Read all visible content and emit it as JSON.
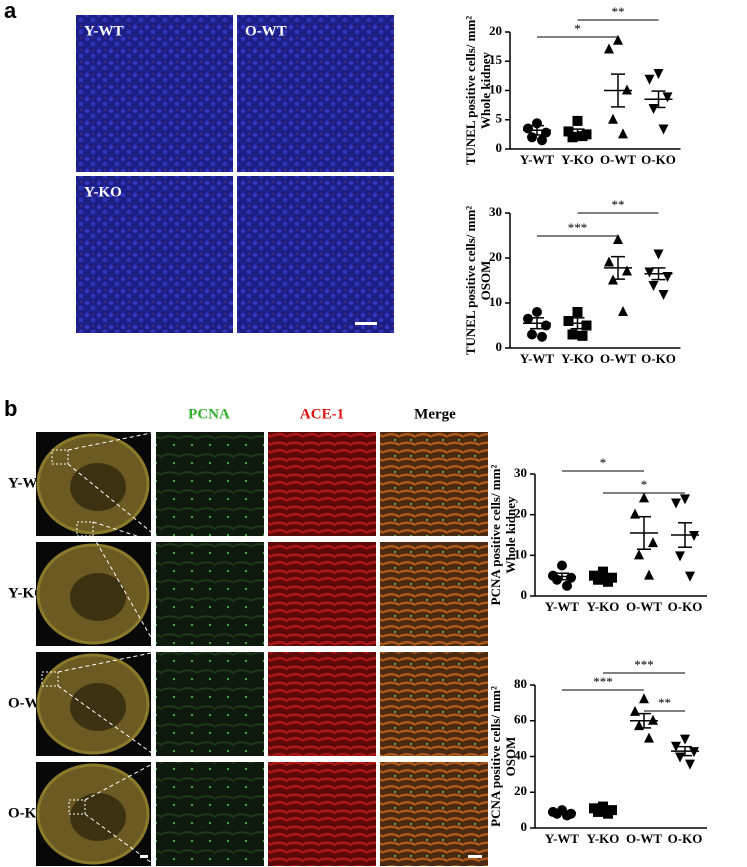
{
  "panel_a": {
    "label": "a",
    "image_labels": [
      "Y-WT",
      "O-WT",
      "Y-KO"
    ]
  },
  "panel_b": {
    "label": "b",
    "columns": [
      "PCNA",
      "ACE-1",
      "Merge"
    ],
    "rows": [
      "Y-WT",
      "Y-KO",
      "O-WT",
      "O-KO"
    ]
  },
  "chart_data": [
    {
      "type": "scatter",
      "y_label": "TUNEL positive cells/ mm²",
      "y_sublabel": "Whole kidney",
      "categories": [
        "Y-WT",
        "Y-KO",
        "O-WT",
        "O-KO"
      ],
      "markers": [
        "circle",
        "square",
        "triangle",
        "triangle-down"
      ],
      "color": "#000000",
      "points": [
        [
          4.4,
          3.5,
          2.8,
          2.0,
          1.5
        ],
        [
          4.8,
          3.0,
          2.5,
          2.0,
          2.2
        ],
        [
          18.5,
          17.0,
          10.0,
          5.0,
          2.5
        ],
        [
          13.0,
          12.0,
          9.0,
          7.0,
          3.5
        ]
      ],
      "means": [
        3.2,
        2.8,
        10.0,
        8.5
      ],
      "sems": [
        0.8,
        0.6,
        2.8,
        1.4
      ],
      "ylim": [
        0,
        20
      ],
      "yticks": [
        0,
        5,
        10,
        15,
        20
      ],
      "significance": [
        {
          "from": "Y-WT",
          "to": "O-WT",
          "label": "*"
        },
        {
          "from": "Y-KO",
          "to": "O-KO",
          "label": "**"
        }
      ]
    },
    {
      "type": "scatter",
      "y_label": "TUNEL positive cells/ mm²",
      "y_sublabel": "OSOM",
      "categories": [
        "Y-WT",
        "Y-KO",
        "O-WT",
        "O-KO"
      ],
      "markers": [
        "circle",
        "square",
        "triangle",
        "triangle-down"
      ],
      "color": "#000000",
      "points": [
        [
          8.0,
          6.5,
          5.0,
          3.0,
          2.5
        ],
        [
          8.0,
          6.0,
          5.0,
          3.0,
          2.7
        ],
        [
          24.0,
          19.0,
          17.0,
          15.0,
          8.0
        ],
        [
          21.0,
          17.0,
          16.0,
          14.0,
          12.0
        ]
      ],
      "means": [
        5.5,
        5.5,
        17.8,
        16.5
      ],
      "sems": [
        1.2,
        1.2,
        2.5,
        1.3
      ],
      "ylim": [
        0,
        30
      ],
      "yticks": [
        0,
        10,
        20,
        30
      ],
      "significance": [
        {
          "from": "Y-WT",
          "to": "O-WT",
          "label": "***"
        },
        {
          "from": "Y-KO",
          "to": "O-KO",
          "label": "**"
        }
      ]
    },
    {
      "type": "scatter",
      "y_label": "PCNA positive cells/ mm²",
      "y_sublabel": "Whole kidney",
      "categories": [
        "Y-WT",
        "Y-KO",
        "O-WT",
        "O-KO"
      ],
      "markers": [
        "circle",
        "square",
        "triangle",
        "triangle-down"
      ],
      "color": "#000000",
      "points": [
        [
          7.5,
          5.0,
          4.5,
          4.0,
          2.5
        ],
        [
          6.0,
          5.0,
          4.5,
          4.0,
          3.5
        ],
        [
          24.0,
          20.0,
          13.0,
          10.0,
          5.0
        ],
        [
          24.0,
          23.0,
          15.0,
          10.0,
          5.0
        ]
      ],
      "means": [
        4.8,
        4.6,
        15.5,
        15.0
      ],
      "sems": [
        0.8,
        0.5,
        4.0,
        3.0
      ],
      "ylim": [
        0,
        30
      ],
      "yticks": [
        0,
        10,
        20,
        30
      ],
      "significance": [
        {
          "from": "Y-WT",
          "to": "O-WT",
          "label": "*"
        },
        {
          "from": "Y-KO",
          "to": "O-KO",
          "label": "*"
        }
      ]
    },
    {
      "type": "scatter",
      "y_label": "PCNA positive cells/ mm²",
      "y_sublabel": "OSOM",
      "categories": [
        "Y-WT",
        "Y-KO",
        "O-WT",
        "O-KO"
      ],
      "markers": [
        "circle",
        "square",
        "triangle",
        "triangle-down"
      ],
      "color": "#000000",
      "points": [
        [
          10.0,
          9.0,
          8.0,
          8.0,
          7.0
        ],
        [
          12.0,
          11.0,
          10.0,
          9.0,
          8.0
        ],
        [
          72.0,
          65.0,
          60.0,
          57.0,
          50.0
        ],
        [
          50.0,
          46.0,
          43.0,
          40.0,
          36.0
        ]
      ],
      "means": [
        8.5,
        10.0,
        60.0,
        43.0
      ],
      "sems": [
        0.8,
        1.0,
        4.0,
        2.5
      ],
      "ylim": [
        0,
        80
      ],
      "yticks": [
        0,
        20,
        40,
        60,
        80
      ],
      "significance": [
        {
          "from": "Y-WT",
          "to": "O-WT",
          "label": "***"
        },
        {
          "from": "Y-KO",
          "to": "O-KO",
          "label": "***"
        },
        {
          "from": "O-WT",
          "to": "O-KO",
          "label": "**"
        }
      ]
    }
  ]
}
